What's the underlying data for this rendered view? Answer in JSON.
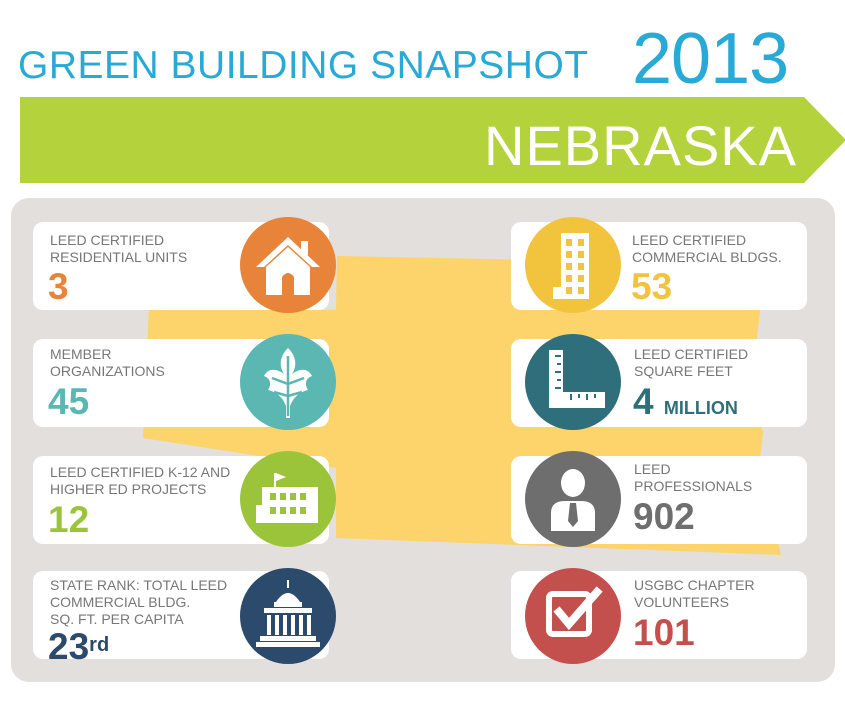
{
  "header": {
    "title": "GREEN BUILDING SNAPSHOT",
    "year": "2013",
    "state": "NEBRASKA"
  },
  "colors": {
    "blue": "#29a9d6",
    "green_banner": "#b4d23c",
    "orange": "#e8833a",
    "yellow": "#f2c43e",
    "teal": "#5ab7b2",
    "dark_teal": "#2f6f7b",
    "lime": "#9cc43a",
    "gray": "#6e6e6e",
    "navy": "#2c4a6b",
    "red": "#c4504d",
    "map_yellow": "#fcd46b"
  },
  "stats": [
    {
      "label1": "LEED CERTIFIED",
      "label2": "RESIDENTIAL UNITS",
      "value": "3",
      "icon": "house-icon"
    },
    {
      "label1": "MEMBER",
      "label2": "ORGANIZATIONS",
      "value": "45",
      "icon": "oak-leaf-icon"
    },
    {
      "label1": "LEED CERTIFIED K-12 AND",
      "label2": "HIGHER ED PROJECTS",
      "value": "12",
      "icon": "school-icon"
    },
    {
      "label1": "STATE RANK: TOTAL LEED",
      "label2": "COMMERCIAL BLDG.",
      "label3": "SQ. FT. PER CAPITA",
      "value": "23",
      "suffix": "rd",
      "icon": "capitol-icon"
    },
    {
      "label1": "LEED CERTIFIED",
      "label2": "COMMERCIAL BLDGS.",
      "value": "53",
      "icon": "office-building-icon"
    },
    {
      "label1": "LEED CERTIFIED",
      "label2": "SQUARE FEET",
      "value": "4",
      "unit": "MILLION",
      "icon": "carpenter-square-icon"
    },
    {
      "label1": "LEED",
      "label2": "PROFESSIONALS",
      "value": "902",
      "icon": "person-icon"
    },
    {
      "label1": "USGBC CHAPTER",
      "label2": "VOLUNTEERS",
      "value": "101",
      "icon": "checkbox-icon"
    }
  ]
}
